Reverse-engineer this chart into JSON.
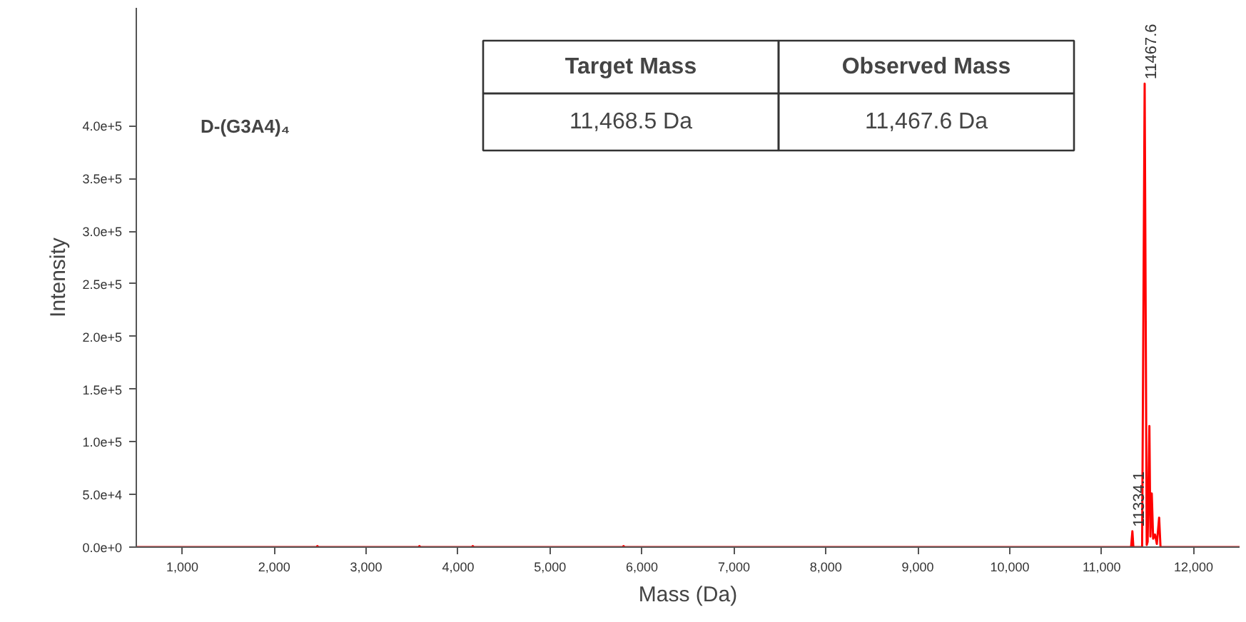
{
  "chart_data": {
    "type": "line",
    "xlabel": "Mass (Da)",
    "ylabel": "Intensity",
    "series": [
      {
        "color": "#ff0000",
        "x": [
          500,
          2460,
          2470,
          2480,
          3570,
          3580,
          3590,
          4150,
          4160,
          4170,
          5790,
          5800,
          5810,
          11320,
          11334.1,
          11345,
          11440,
          11467.6,
          11490,
          11500,
          11519,
          11530,
          11545,
          11560,
          11580,
          11600,
          11625,
          11640,
          12500
        ],
        "values": [
          0,
          0,
          1000,
          0,
          0,
          1000,
          0,
          0,
          1000,
          0,
          0,
          1000,
          0,
          0,
          15000,
          0,
          0,
          440000,
          2000,
          5000,
          115000,
          10000,
          51000,
          8000,
          12000,
          3000,
          28000,
          0,
          0
        ]
      }
    ],
    "xlim": [
      500,
      12500
    ],
    "ylim": [
      0,
      512000
    ],
    "xticks": [
      {
        "value": 1000,
        "label": "1,000"
      },
      {
        "value": 2000,
        "label": "2,000"
      },
      {
        "value": 3000,
        "label": "3,000"
      },
      {
        "value": 4000,
        "label": "4,000"
      },
      {
        "value": 5000,
        "label": "5,000"
      },
      {
        "value": 6000,
        "label": "6,000"
      },
      {
        "value": 7000,
        "label": "7,000"
      },
      {
        "value": 8000,
        "label": "8,000"
      },
      {
        "value": 9000,
        "label": "9,000"
      },
      {
        "value": 10000,
        "label": "10,000"
      },
      {
        "value": 11000,
        "label": "11,000"
      },
      {
        "value": 12000,
        "label": "12,000"
      }
    ],
    "yticks": [
      {
        "value": 0,
        "label": "0.0e+0"
      },
      {
        "value": 50000,
        "label": "5.0e+4"
      },
      {
        "value": 100000,
        "label": "1.0e+5"
      },
      {
        "value": 150000,
        "label": "1.5e+5"
      },
      {
        "value": 200000,
        "label": "2.0e+5"
      },
      {
        "value": 250000,
        "label": "2.5e+5"
      },
      {
        "value": 300000,
        "label": "3.0e+5"
      },
      {
        "value": 350000,
        "label": "3.5e+5"
      },
      {
        "value": 400000,
        "label": "4.0e+5"
      }
    ],
    "grid": false,
    "marker": "none",
    "line_style": "solid",
    "annotations": [
      "D-(G3A4)₄",
      "Target Mass",
      "Observed Mass",
      "11,468.5 Da",
      "11,467.6 Da",
      {
        "text": "11467.6",
        "x": 11467.6,
        "y": 440000
      },
      {
        "text": "11334.1",
        "x": 11334.1,
        "y": 15000
      }
    ]
  }
}
